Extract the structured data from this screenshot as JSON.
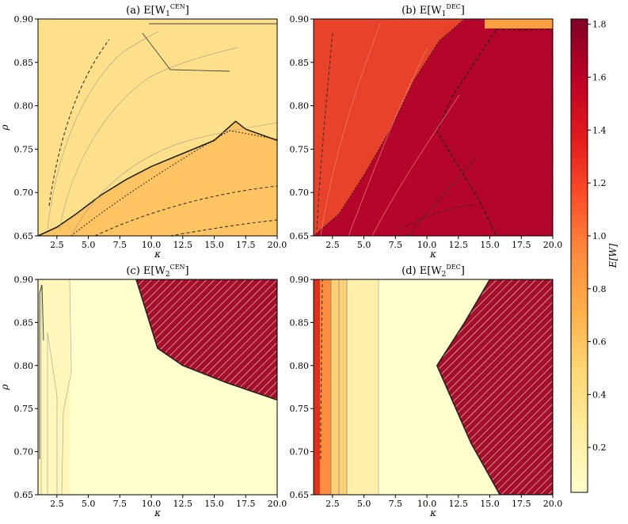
{
  "chart_data": {
    "type": "heatmap",
    "colormap": "YlOrRd",
    "colorbar": {
      "label": "E[W]",
      "range": [
        0.03,
        1.82
      ],
      "ticks": [
        0.2,
        0.4,
        0.6,
        0.8,
        1.0,
        1.2,
        1.4,
        1.6,
        1.8
      ],
      "tick_labels": [
        "0.2",
        "0.4",
        "0.6",
        "0.8",
        "1.0",
        "1.2",
        "1.4",
        "1.6",
        "1.8"
      ]
    },
    "xlabel": "κ",
    "ylabel": "ρ",
    "xlim": [
      1,
      20
    ],
    "ylim": [
      0.65,
      0.9
    ],
    "xticks": [
      2.5,
      5.0,
      7.5,
      10.0,
      12.5,
      15.0,
      17.5,
      20.0
    ],
    "xtick_labels": [
      "2.5",
      "5.0",
      "7.5",
      "10.0",
      "12.5",
      "15.0",
      "17.5",
      "20.0"
    ],
    "yticks": [
      0.65,
      0.7,
      0.75,
      0.8,
      0.85,
      0.9
    ],
    "ytick_labels": [
      "0.65",
      "0.70",
      "0.75",
      "0.80",
      "0.85",
      "0.90"
    ],
    "panels": [
      {
        "id": "a",
        "prefix": "(a) E[W",
        "sub": "1",
        "sup": "CEN",
        "suffix": "]",
        "background_value": 0.45,
        "lower_region_value": 0.62,
        "boundary": [
          [
            1.0,
            0.65
          ],
          [
            2.5,
            0.66
          ],
          [
            4.0,
            0.675
          ],
          [
            6.0,
            0.697
          ],
          [
            8.0,
            0.715
          ],
          [
            10.0,
            0.73
          ],
          [
            12.5,
            0.745
          ],
          [
            15.0,
            0.76
          ],
          [
            16.7,
            0.782
          ],
          [
            17.5,
            0.773
          ],
          [
            20.0,
            0.76
          ]
        ],
        "hatched": null,
        "hatched_value": null
      },
      {
        "id": "b",
        "prefix": "(b) E[W",
        "sub": "1",
        "sup": "DEC",
        "suffix": "]",
        "background_value": 1.68,
        "lower_region_value": 1.35,
        "boundary": [
          [
            1.0,
            0.65
          ],
          [
            3.0,
            0.675
          ],
          [
            5.0,
            0.72
          ],
          [
            7.0,
            0.77
          ],
          [
            9.0,
            0.83
          ],
          [
            11.0,
            0.875
          ],
          [
            13.0,
            0.9
          ]
        ],
        "hatched": null,
        "hatched_value": null,
        "corner_value": 0.9,
        "right_region_value": 1.64,
        "right_region": [
          [
            15.5,
            0.888
          ],
          [
            20.0,
            0.888
          ],
          [
            20.0,
            0.65
          ],
          [
            15.5,
            0.65
          ],
          [
            14.2,
            0.69
          ],
          [
            12.5,
            0.73
          ],
          [
            10.8,
            0.77
          ],
          [
            12.0,
            0.81
          ],
          [
            15.5,
            0.888
          ]
        ]
      },
      {
        "id": "c",
        "prefix": "(c) E[W",
        "sub": "2",
        "sup": "CEN",
        "suffix": "]",
        "background_value": 0.06,
        "lower_region_value": null,
        "boundary": null,
        "hatched_value": 1.7,
        "hatched": [
          [
            8.8,
            0.9
          ],
          [
            20.0,
            0.9
          ],
          [
            20.0,
            0.76
          ],
          [
            16.0,
            0.78
          ],
          [
            12.5,
            0.8
          ],
          [
            10.5,
            0.82
          ],
          [
            8.8,
            0.9
          ]
        ]
      },
      {
        "id": "d",
        "prefix": "(d) E[W",
        "sub": "2",
        "sup": "DEC",
        "suffix": "]",
        "background_value": 0.08,
        "lower_region_value": null,
        "boundary": null,
        "hatched_value": 1.7,
        "hatched": [
          [
            15.0,
            0.9
          ],
          [
            20.0,
            0.9
          ],
          [
            20.0,
            0.65
          ],
          [
            15.8,
            0.65
          ],
          [
            13.5,
            0.71
          ],
          [
            10.8,
            0.8
          ],
          [
            13.0,
            0.85
          ],
          [
            15.0,
            0.9
          ]
        ]
      }
    ]
  }
}
